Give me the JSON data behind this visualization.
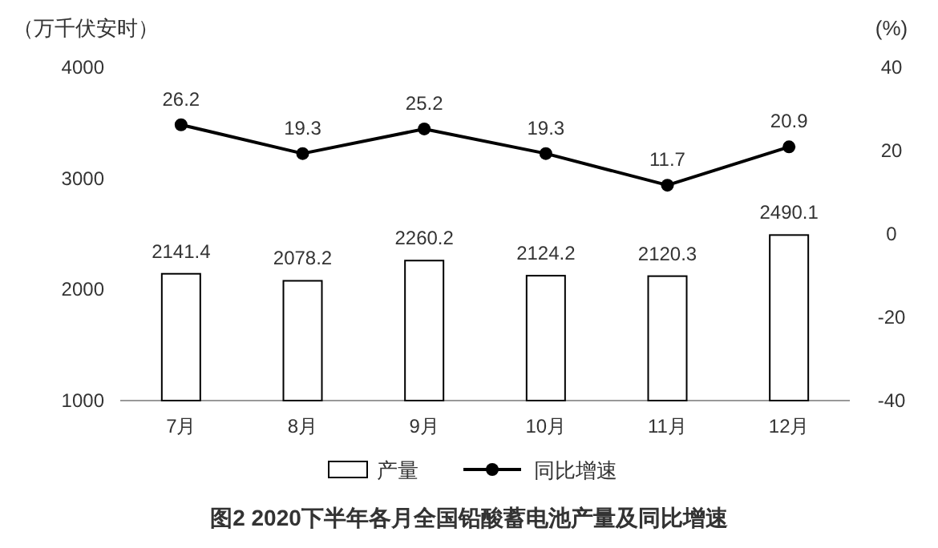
{
  "chart_data": {
    "type": "bar",
    "title": "图2  2020下半年各月全国铅酸蓄电池产量及同比增速",
    "ylabel": "（万千伏安时）",
    "y2label": "(%)",
    "categories": [
      "7月",
      "8月",
      "9月",
      "10月",
      "11月",
      "12月"
    ],
    "series": [
      {
        "name": "产量",
        "color": "#ffffff",
        "values": [
          2141.4,
          2078.2,
          2260.2,
          2124.2,
          2120.3,
          2490.1
        ]
      },
      {
        "name": "同比增速",
        "type": "line",
        "axis": "y2",
        "color": "#000000",
        "values": [
          26.2,
          19.3,
          25.2,
          19.3,
          11.7,
          20.9
        ]
      }
    ],
    "ylim": [
      1000,
      4000
    ],
    "yticks": [
      1000,
      2000,
      3000,
      4000
    ],
    "y2lim": [
      -40,
      40
    ],
    "y2ticks": [
      -40,
      -20,
      0,
      20,
      40
    ],
    "data_labels": true,
    "legend": "bottom",
    "marker": "circle",
    "grid": false
  }
}
